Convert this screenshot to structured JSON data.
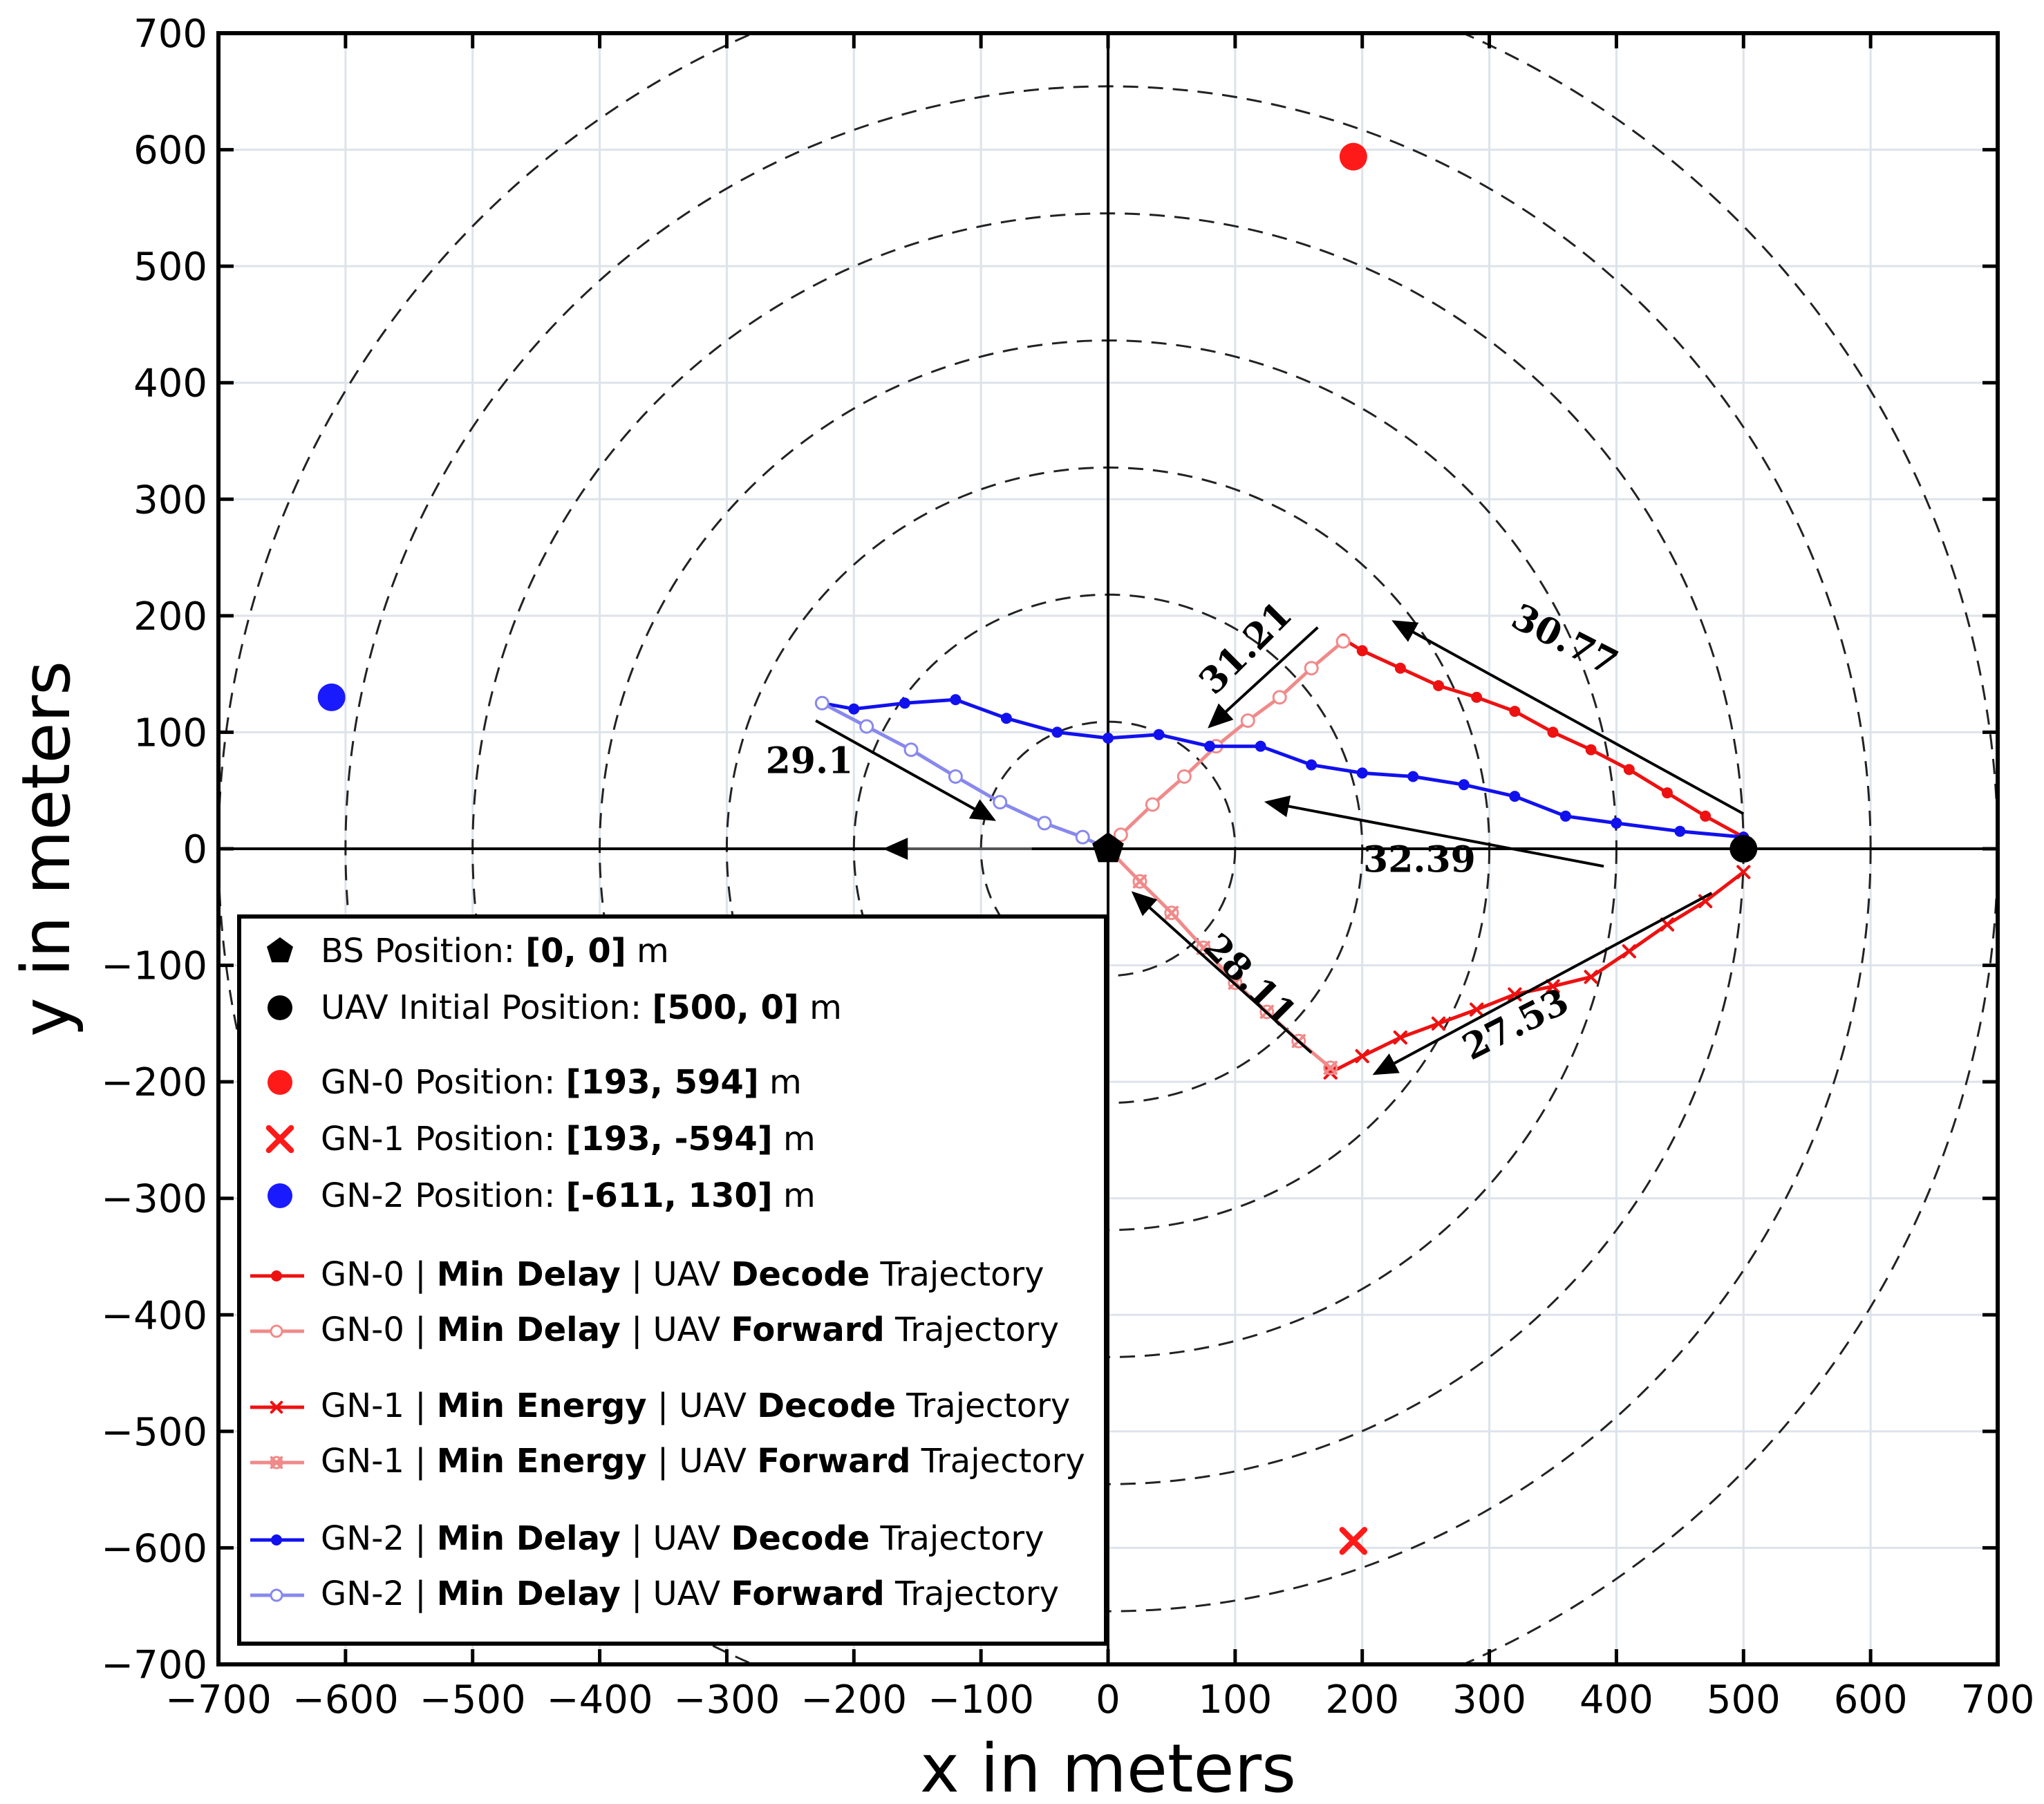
{
  "chart_data": {
    "type": "line",
    "xlabel": "x in meters",
    "ylabel": "y in meters",
    "xlim": [
      -700,
      700
    ],
    "ylim": [
      -700,
      700
    ],
    "xticks": [
      -700,
      -600,
      -500,
      -400,
      -300,
      -200,
      -100,
      0,
      100,
      200,
      300,
      400,
      500,
      600,
      700
    ],
    "yticks": [
      -700,
      -600,
      -500,
      -400,
      -300,
      -200,
      -100,
      0,
      100,
      200,
      300,
      400,
      500,
      600,
      700
    ],
    "tick_labels_x": [
      "−700",
      "−600",
      "−500",
      "−400",
      "−300",
      "−200",
      "−100",
      "0",
      "100",
      "200",
      "300",
      "400",
      "500",
      "600",
      "700"
    ],
    "tick_labels_y": [
      "−700",
      "−600",
      "−500",
      "−400",
      "−300",
      "−200",
      "−100",
      "0",
      "100",
      "200",
      "300",
      "400",
      "500",
      "600",
      "700"
    ],
    "grid": true,
    "circle_radii": [
      100,
      200,
      300,
      400,
      500,
      600,
      700
    ],
    "points": [
      {
        "name": "bs",
        "x": 0,
        "y": 0,
        "marker": "pentagon",
        "color": "#000000"
      },
      {
        "name": "uav-initial",
        "x": 500,
        "y": 0,
        "marker": "circle",
        "color": "#000000"
      },
      {
        "name": "gn-0",
        "x": 193,
        "y": 594,
        "marker": "circle",
        "color": "#ff1a1a"
      },
      {
        "name": "gn-1",
        "x": 193,
        "y": -594,
        "marker": "x",
        "color": "#ff1a1a"
      },
      {
        "name": "gn-2",
        "x": -611,
        "y": 130,
        "marker": "circle",
        "color": "#1a1aff"
      }
    ],
    "series": [
      {
        "name": "GN-0 | Min Delay | UAV Decode Trajectory",
        "color": "#ee1111",
        "marker": "dot",
        "x": [
          500,
          470,
          440,
          410,
          380,
          350,
          320,
          290,
          260,
          230,
          200,
          185
        ],
        "y": [
          10,
          28,
          48,
          68,
          85,
          100,
          118,
          130,
          140,
          155,
          170,
          180
        ]
      },
      {
        "name": "GN-0 | Min Delay | UAV Forward Trajectory",
        "color": "#f08a8a",
        "marker": "ring",
        "x": [
          185,
          160,
          135,
          110,
          85,
          60,
          35,
          10,
          0
        ],
        "y": [
          178,
          155,
          130,
          110,
          88,
          62,
          38,
          12,
          0
        ]
      },
      {
        "name": "GN-1 | Min Energy | UAV Decode Trajectory",
        "color": "#ee1111",
        "marker": "x",
        "x": [
          500,
          470,
          440,
          410,
          380,
          350,
          320,
          290,
          260,
          230,
          200,
          175
        ],
        "y": [
          -20,
          -45,
          -65,
          -88,
          -110,
          -118,
          -125,
          -138,
          -150,
          -162,
          -178,
          -192
        ]
      },
      {
        "name": "GN-1 | Min Energy | UAV Forward Trajectory",
        "color": "#f08a8a",
        "marker": "ringx",
        "x": [
          175,
          150,
          125,
          100,
          75,
          50,
          25,
          0
        ],
        "y": [
          -188,
          -165,
          -140,
          -115,
          -85,
          -55,
          -28,
          0
        ]
      },
      {
        "name": "GN-2 | Min Delay | UAV Decode Trajectory",
        "color": "#1111ee",
        "marker": "dot",
        "x": [
          500,
          450,
          400,
          360,
          320,
          280,
          240,
          200,
          160,
          120,
          80,
          40,
          0,
          -40,
          -80,
          -120,
          -160,
          -200,
          -225
        ],
        "y": [
          10,
          15,
          22,
          28,
          45,
          55,
          62,
          65,
          72,
          88,
          88,
          98,
          95,
          100,
          112,
          128,
          125,
          120,
          125
        ]
      },
      {
        "name": "GN-2 | Min Delay | UAV Forward Trajectory",
        "color": "#8888ee",
        "marker": "ring",
        "x": [
          -225,
          -190,
          -155,
          -120,
          -85,
          -50,
          -20,
          0
        ],
        "y": [
          125,
          105,
          85,
          62,
          40,
          22,
          10,
          0
        ]
      }
    ],
    "arrows": [
      {
        "label": "30.77",
        "from": [
          500,
          30
        ],
        "to": [
          225,
          195
        ],
        "label_at": [
          355,
          170
        ],
        "rotate": 27
      },
      {
        "label": "31.21",
        "from": [
          165,
          190
        ],
        "to": [
          80,
          105
        ],
        "label_at": [
          115,
          165
        ],
        "rotate": -45
      },
      {
        "label": "29.1",
        "from": [
          -230,
          110
        ],
        "to": [
          -90,
          25
        ],
        "label_at": [
          -235,
          65
        ],
        "rotate": 0
      },
      {
        "label": "32.39",
        "from": [
          390,
          -15
        ],
        "to": [
          125,
          40
        ],
        "label_at": [
          245,
          -20
        ],
        "rotate": 0
      },
      {
        "label": "28.11",
        "from": [
          160,
          -175
        ],
        "to": [
          20,
          -38
        ],
        "label_at": [
          105,
          -120
        ],
        "rotate": 45
      },
      {
        "label": "27.53",
        "from": [
          475,
          -38
        ],
        "to": [
          210,
          -193
        ],
        "label_at": [
          325,
          -160
        ],
        "rotate": -27
      }
    ],
    "legend": {
      "placement": "lower-left",
      "entries": [
        {
          "id": "bs",
          "marker": "pentagon",
          "color": "#000000",
          "parts": [
            {
              "t": "BS Position: "
            },
            {
              "t": "[0, 0]",
              "b": true
            },
            {
              "t": " m"
            }
          ]
        },
        {
          "id": "uav",
          "marker": "circle",
          "color": "#000000",
          "parts": [
            {
              "t": "UAV Initial Position: "
            },
            {
              "t": "[500, 0]",
              "b": true
            },
            {
              "t": " m"
            }
          ]
        },
        {
          "id": "gn0",
          "marker": "circle",
          "color": "#ff1a1a",
          "parts": [
            {
              "t": "GN-0 Position: "
            },
            {
              "t": "[193, 594]",
              "b": true
            },
            {
              "t": " m"
            }
          ]
        },
        {
          "id": "gn1",
          "marker": "x",
          "color": "#ff1a1a",
          "parts": [
            {
              "t": "GN-1 Position: "
            },
            {
              "t": "[193, -594]",
              "b": true
            },
            {
              "t": " m"
            }
          ]
        },
        {
          "id": "gn2",
          "marker": "circle",
          "color": "#1a1aff",
          "parts": [
            {
              "t": "GN-2 Position: "
            },
            {
              "t": "[-611, 130]",
              "b": true
            },
            {
              "t": " m"
            }
          ]
        },
        {
          "id": "s0d",
          "marker": "line-dot",
          "color": "#ee1111",
          "parts": [
            {
              "t": "GN-0 | "
            },
            {
              "t": "Min Delay",
              "b": true
            },
            {
              "t": " | UAV "
            },
            {
              "t": "Decode",
              "b": true
            },
            {
              "t": " Trajectory"
            }
          ]
        },
        {
          "id": "s0f",
          "marker": "line-ring",
          "color": "#f08a8a",
          "parts": [
            {
              "t": "GN-0 | "
            },
            {
              "t": "Min Delay",
              "b": true
            },
            {
              "t": " | UAV "
            },
            {
              "t": "Forward",
              "b": true
            },
            {
              "t": " Trajectory"
            }
          ]
        },
        {
          "id": "s1d",
          "marker": "line-x",
          "color": "#ee1111",
          "parts": [
            {
              "t": "GN-1 | "
            },
            {
              "t": "Min Energy",
              "b": true
            },
            {
              "t": " | UAV "
            },
            {
              "t": "Decode",
              "b": true
            },
            {
              "t": " Trajectory"
            }
          ]
        },
        {
          "id": "s1f",
          "marker": "line-ringx",
          "color": "#f08a8a",
          "parts": [
            {
              "t": "GN-1 | "
            },
            {
              "t": "Min Energy",
              "b": true
            },
            {
              "t": " | UAV "
            },
            {
              "t": "Forward",
              "b": true
            },
            {
              "t": " Trajectory"
            }
          ]
        },
        {
          "id": "s2d",
          "marker": "line-dot",
          "color": "#1111ee",
          "parts": [
            {
              "t": "GN-2 | "
            },
            {
              "t": "Min Delay",
              "b": true
            },
            {
              "t": " | UAV "
            },
            {
              "t": "Decode",
              "b": true
            },
            {
              "t": " Trajectory"
            }
          ]
        },
        {
          "id": "s2f",
          "marker": "line-ring",
          "color": "#8888ee",
          "parts": [
            {
              "t": "GN-2 | "
            },
            {
              "t": "Min Delay",
              "b": true
            },
            {
              "t": " | UAV "
            },
            {
              "t": "Forward",
              "b": true
            },
            {
              "t": " Trajectory"
            }
          ]
        }
      ]
    }
  }
}
